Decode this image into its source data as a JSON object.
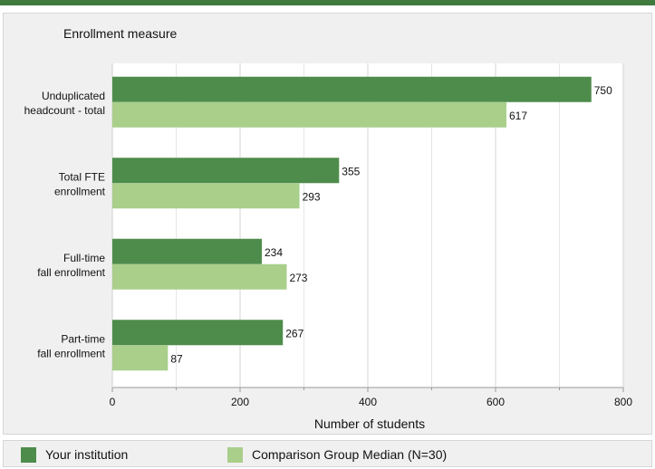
{
  "colors": {
    "institution": "#4e8c4c",
    "comparison": "#a9cf8b",
    "accent_bar": "#3f7a3f"
  },
  "chart_data": {
    "type": "bar",
    "orientation": "horizontal",
    "title": "Enrollment measure",
    "xlabel": "Number of students",
    "xlim": [
      0,
      800
    ],
    "x_ticks": [
      0,
      200,
      400,
      600,
      800
    ],
    "grid": true,
    "categories": [
      [
        "Unduplicated",
        "headcount - total"
      ],
      [
        "Total FTE",
        "enrollment"
      ],
      [
        "Full-time",
        "fall enrollment"
      ],
      [
        "Part-time",
        "fall enrollment"
      ]
    ],
    "series": [
      {
        "name": "Your institution",
        "values": [
          750,
          355,
          234,
          267
        ]
      },
      {
        "name": "Comparison Group Median (N=30)",
        "values": [
          617,
          293,
          273,
          87
        ]
      }
    ],
    "legend_position": "bottom"
  }
}
